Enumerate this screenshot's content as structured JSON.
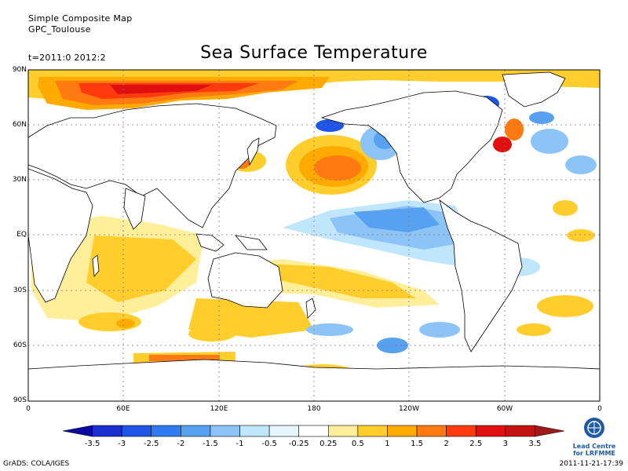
{
  "header": {
    "line1": "Simple Composite Map",
    "line2": "GPC_Toulouse",
    "time": "t=2011:0 2012:2"
  },
  "title": "Sea Surface Temperature",
  "lat_labels": [
    "90N",
    "60N",
    "30N",
    "EQ",
    "30S",
    "60S",
    "90S"
  ],
  "lon_labels": [
    "0",
    "60E",
    "120E",
    "180",
    "120W",
    "60W",
    "0"
  ],
  "colorbar": {
    "labels": [
      "-3.5",
      "-3",
      "-2.5",
      "-2",
      "-1.5",
      "-1",
      "-0.5",
      "-0.25",
      "0.25",
      "0.5",
      "1",
      "1.5",
      "2",
      "2.5",
      "3",
      "3.5"
    ],
    "colors": [
      "#0a0a9c",
      "#1a2fd0",
      "#1f55e6",
      "#2f7cf0",
      "#58a0f0",
      "#8cc4f7",
      "#c0e6fb",
      "#e6f6ff",
      "#ffffff",
      "#ffef9a",
      "#ffce2c",
      "#ffaa00",
      "#ff7a10",
      "#ff3a0f",
      "#e01010",
      "#c31212",
      "#a01a1a"
    ]
  },
  "footer": {
    "left": "GrADS: COLA/IGES",
    "right": "2011-11-21-17:39"
  },
  "logo": {
    "icon": "wmo-emblem-icon",
    "line1": "Lead Centre",
    "line2": "for LRFMME"
  },
  "anomaly_legend_unit_hint": "",
  "colors": {
    "land": "#ffffff",
    "ocean_neutral": "#ffffff",
    "frame": "#000000",
    "grid": "#888888"
  }
}
